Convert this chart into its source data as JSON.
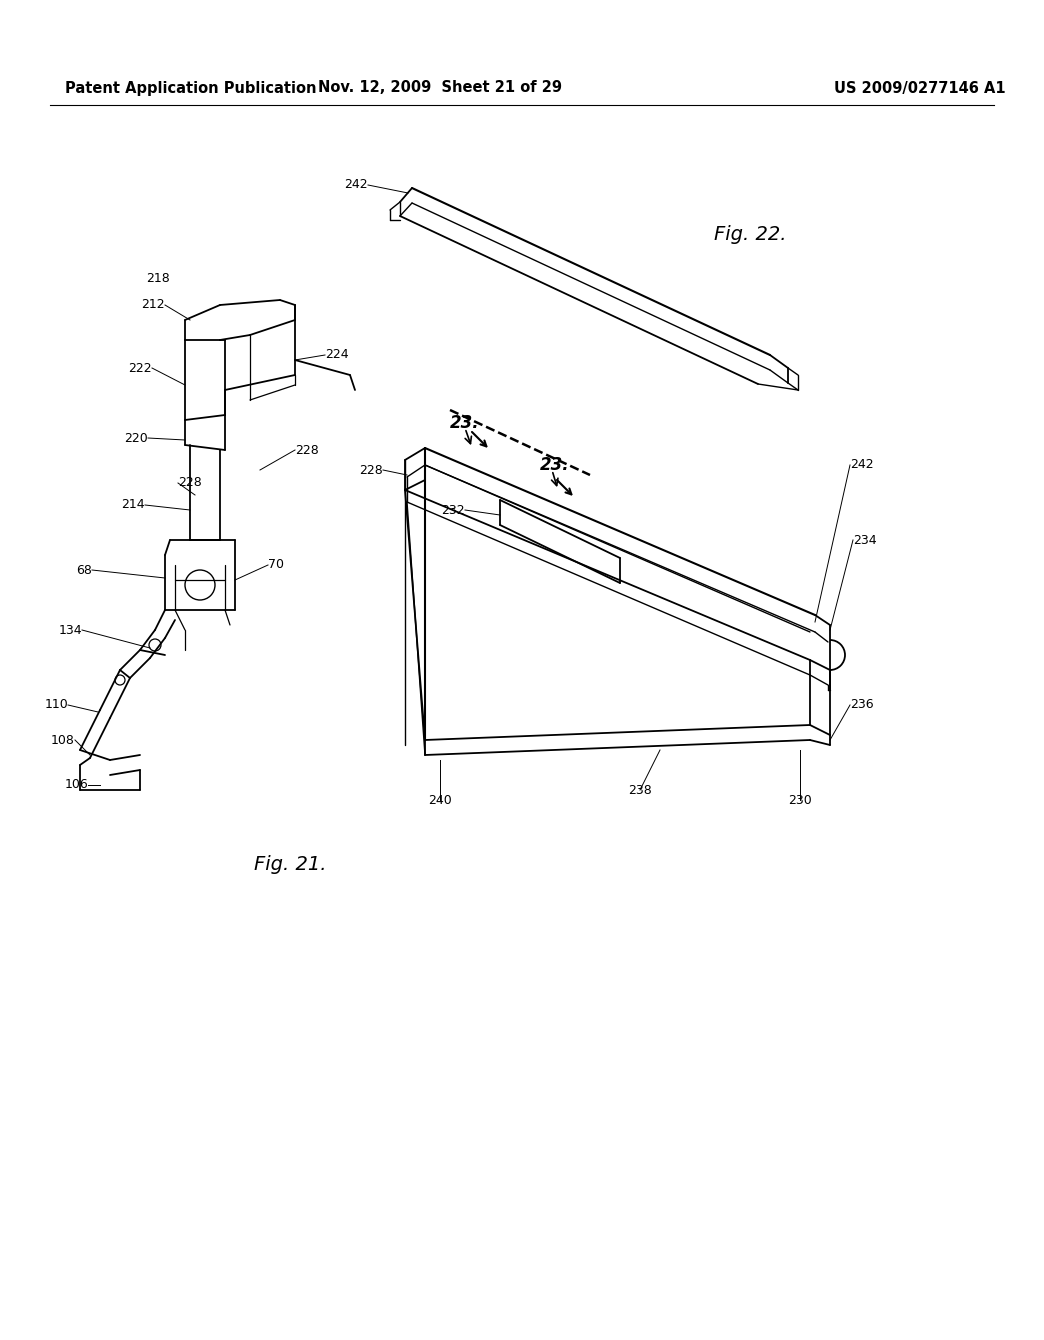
{
  "bg_color": "#ffffff",
  "header_left": "Patent Application Publication",
  "header_mid": "Nov. 12, 2009  Sheet 21 of 29",
  "header_right": "US 2009/0277146 A1",
  "fig21_label": "Fig. 21.",
  "fig22_label": "Fig. 22.",
  "header_fontsize": 11,
  "label_fontsize": 9,
  "fig_label_fontsize": 14
}
